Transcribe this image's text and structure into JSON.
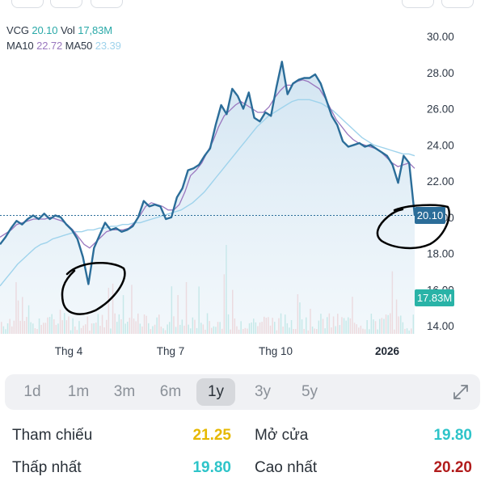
{
  "legend": {
    "symbol": "VCG",
    "price": "20.10",
    "vol_label": "Vol",
    "vol_value": "17,83M",
    "ma10_label": "MA10",
    "ma10_value": "22.72",
    "ma50_label": "MA50",
    "ma50_value": "23.39"
  },
  "price_badge": "20.10",
  "volume_badge": "17.83M",
  "colors": {
    "price_line": "#2b6d99",
    "ma10": "#9a77bf",
    "ma50": "#9fd3ec",
    "volume_up": "#8fd9cf",
    "volume_down": "#f3b3b3",
    "active_range_bg": "#d6d8dc",
    "reference_yellow": "#e6b800",
    "teal_value": "#2ec4c9",
    "high_red": "#b11c1c"
  },
  "ranges": {
    "items": [
      "1d",
      "1m",
      "3m",
      "6m",
      "1y",
      "3y",
      "5y"
    ],
    "selected": "1y"
  },
  "stats": {
    "reference_label": "Tham chiếu",
    "reference_value": "21.25",
    "open_label": "Mở cửa",
    "open_value": "19.80",
    "low_label": "Thấp nhất",
    "low_value": "19.80",
    "high_label": "Cao nhất",
    "high_value": "20.20"
  },
  "icons": {
    "expand": "expand-diagonal-icon"
  },
  "chart_data": {
    "type": "line",
    "y_ticks": [
      "30.00",
      "28.00",
      "26.00",
      "24.00",
      "22.00",
      "20.00",
      "18.00",
      "16.00",
      "14.00"
    ],
    "ylim": [
      14,
      30.5
    ],
    "x_ticks": [
      "Thg 4",
      "Thg 7",
      "Thg 10",
      "2026"
    ],
    "reference_price": 20.1,
    "series": [
      {
        "name": "VCG",
        "values": [
          18.5,
          18.9,
          19.4,
          19.8,
          19.6,
          19.9,
          20.1,
          19.9,
          20.2,
          19.9,
          20.1,
          20.0,
          19.6,
          19.3,
          18.8,
          17.8,
          16.3,
          18.3,
          19.0,
          19.7,
          19.3,
          19.4,
          19.2,
          19.3,
          19.5,
          20.0,
          20.9,
          20.6,
          20.7,
          20.6,
          19.9,
          20.0,
          21.1,
          21.6,
          22.6,
          22.7,
          22.9,
          23.4,
          23.8,
          25.1,
          26.2,
          25.7,
          27.1,
          26.7,
          26.0,
          26.9,
          25.5,
          25.3,
          25.8,
          25.6,
          27.2,
          28.6,
          26.8,
          27.4,
          27.6,
          27.7,
          27.7,
          27.9,
          27.4,
          26.5,
          25.6,
          25.1,
          24.2,
          23.9,
          24.0,
          24.1,
          23.9,
          24.0,
          23.8,
          23.6,
          23.4,
          22.9,
          21.9,
          23.4,
          23.0,
          20.1
        ],
        "color": "#2b6d99"
      },
      {
        "name": "MA10",
        "values": [
          18.9,
          19.1,
          19.3,
          19.6,
          19.7,
          19.8,
          19.9,
          19.9,
          19.9,
          20.0,
          19.9,
          19.8,
          19.6,
          19.3,
          18.9,
          18.5,
          18.3,
          18.6,
          18.9,
          19.2,
          19.3,
          19.3,
          19.3,
          19.4,
          19.7,
          20.1,
          20.6,
          20.8,
          20.7,
          20.6,
          20.4,
          20.4,
          20.7,
          21.4,
          22.3,
          22.6,
          23.0,
          23.6,
          24.2,
          25.0,
          25.6,
          25.9,
          26.2,
          26.4,
          26.2,
          26.0,
          25.8,
          25.8,
          26.1,
          26.6,
          27.0,
          27.3,
          27.3,
          27.5,
          27.6,
          27.5,
          27.3,
          27.1,
          26.6,
          26.0,
          25.4,
          25.0,
          24.6,
          24.3,
          24.1,
          24.0,
          23.9,
          23.8,
          23.6,
          23.3,
          23.0,
          22.8,
          22.9,
          23.0,
          22.7
        ],
        "color": "#9a77bf"
      },
      {
        "name": "MA50",
        "values": [
          16.2,
          16.6,
          17.0,
          17.4,
          17.7,
          18.0,
          18.3,
          18.5,
          18.6,
          18.8,
          18.9,
          19.0,
          19.1,
          19.2,
          19.2,
          19.3,
          19.3,
          19.4,
          19.4,
          19.5,
          19.5,
          19.6,
          19.6,
          19.7,
          19.7,
          19.8,
          19.9,
          20.0,
          20.1,
          20.2,
          20.3,
          20.4,
          20.6,
          20.8,
          21.1,
          21.4,
          21.8,
          22.2,
          22.6,
          23.0,
          23.4,
          23.8,
          24.2,
          24.6,
          25.0,
          25.3,
          25.6,
          25.8,
          26.0,
          26.2,
          26.4,
          26.5,
          26.5,
          26.5,
          26.4,
          26.3,
          26.1,
          25.9,
          25.6,
          25.3,
          25.0,
          24.7,
          24.4,
          24.2,
          24.0,
          23.9,
          23.8,
          23.7,
          23.6,
          23.5,
          23.5,
          23.4
        ],
        "color": "#9fd3ec"
      }
    ]
  }
}
